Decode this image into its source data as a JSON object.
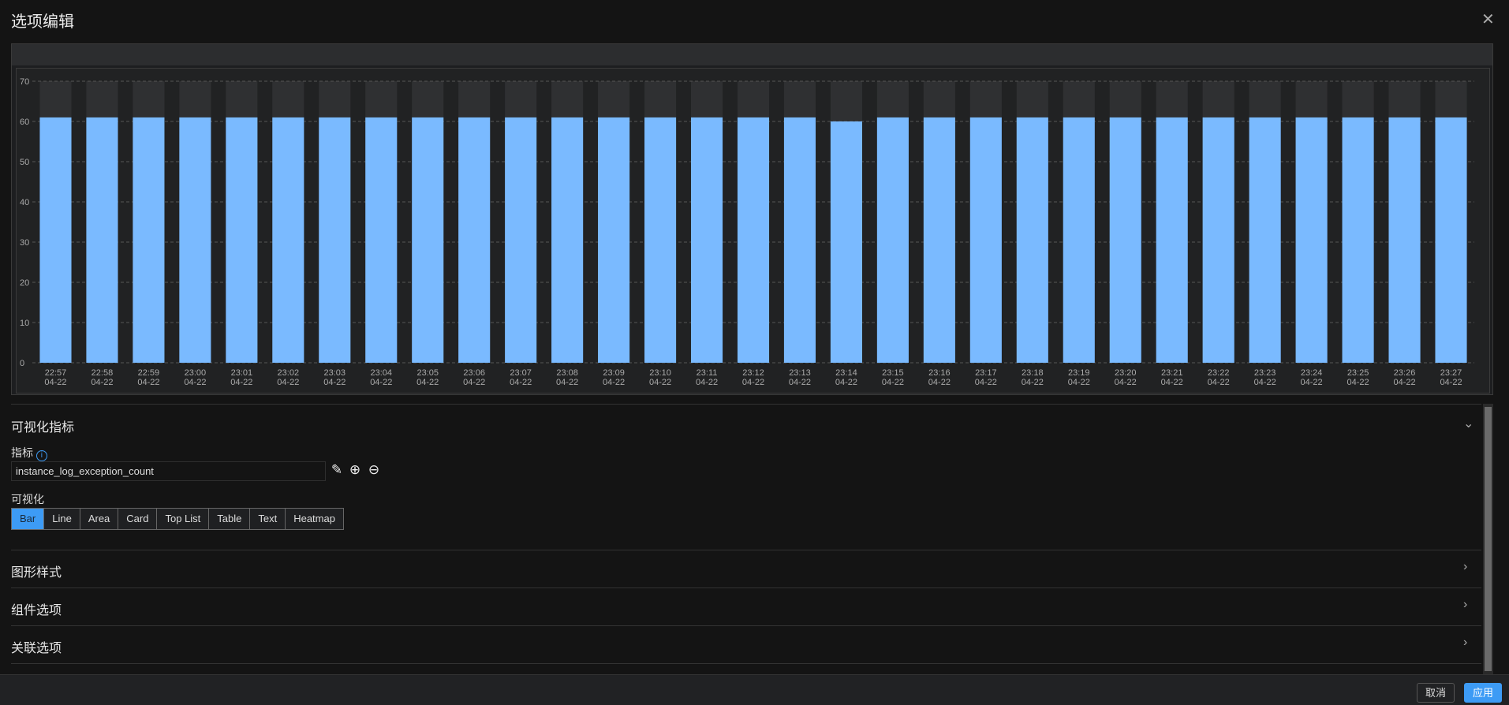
{
  "dialog": {
    "title": "选项编辑",
    "close_icon": "close-icon"
  },
  "chart_data": {
    "type": "bar",
    "categories": [
      "22:57",
      "22:58",
      "22:59",
      "23:00",
      "23:01",
      "23:02",
      "23:03",
      "23:04",
      "23:05",
      "23:06",
      "23:07",
      "23:08",
      "23:09",
      "23:10",
      "23:11",
      "23:12",
      "23:13",
      "23:14",
      "23:15",
      "23:16",
      "23:17",
      "23:18",
      "23:19",
      "23:20",
      "23:21",
      "23:22",
      "23:23",
      "23:24",
      "23:25",
      "23:26",
      "23:27"
    ],
    "category_date": "04-22",
    "values": [
      61,
      61,
      61,
      61,
      61,
      61,
      61,
      61,
      61,
      61,
      61,
      61,
      61,
      61,
      61,
      61,
      61,
      60,
      61,
      61,
      61,
      61,
      61,
      61,
      61,
      61,
      61,
      61,
      61,
      61,
      61
    ],
    "ylim": [
      0,
      70
    ],
    "yticks": [
      0,
      10,
      20,
      30,
      40,
      50,
      60,
      70
    ],
    "grid": true,
    "bar_color": "#7abaff",
    "title": "",
    "xlabel": "",
    "ylabel": ""
  },
  "metrics_section": {
    "title": "可视化指标",
    "metric_label": "指标",
    "metric_value": "instance_log_exception_count",
    "viz_label": "可视化",
    "viz_options": [
      "Bar",
      "Line",
      "Area",
      "Card",
      "Top List",
      "Table",
      "Text",
      "Heatmap"
    ],
    "selected": "Bar"
  },
  "sections": [
    "图形样式",
    "组件选项",
    "关联选项"
  ],
  "footer": {
    "cancel": "取消",
    "apply": "应用"
  },
  "colors": {
    "accent": "#3d9bf5",
    "background": "#141414"
  }
}
